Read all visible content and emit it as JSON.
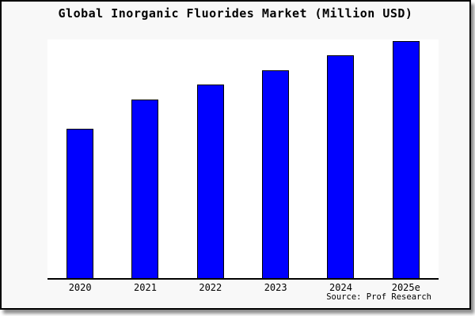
{
  "title": "Global Inorganic Fluorides Market (Million USD)",
  "source": "Source: Prof Research",
  "colors": {
    "bar": "#0000ff",
    "bar_border": "#000000",
    "canvas_bg": "#f8f8f8",
    "plot_bg": "#ffffff",
    "axis": "#000000"
  },
  "chart_data": {
    "type": "bar",
    "title": "Global Inorganic Fluorides Market (Million USD)",
    "categories": [
      "2020",
      "2021",
      "2022",
      "2023",
      "2024",
      "2025e"
    ],
    "values": [
      189,
      226,
      245,
      263,
      282,
      300
    ],
    "xlabel": "",
    "ylabel": "",
    "ylim": [
      0,
      302
    ],
    "grid": false,
    "legend": false,
    "y_axis_ticks": "none",
    "note": "No y-axis ticks or value labels are shown in the chart; values are relative bar heights estimated from pixels.",
    "source_label": "Source: Prof Research"
  }
}
